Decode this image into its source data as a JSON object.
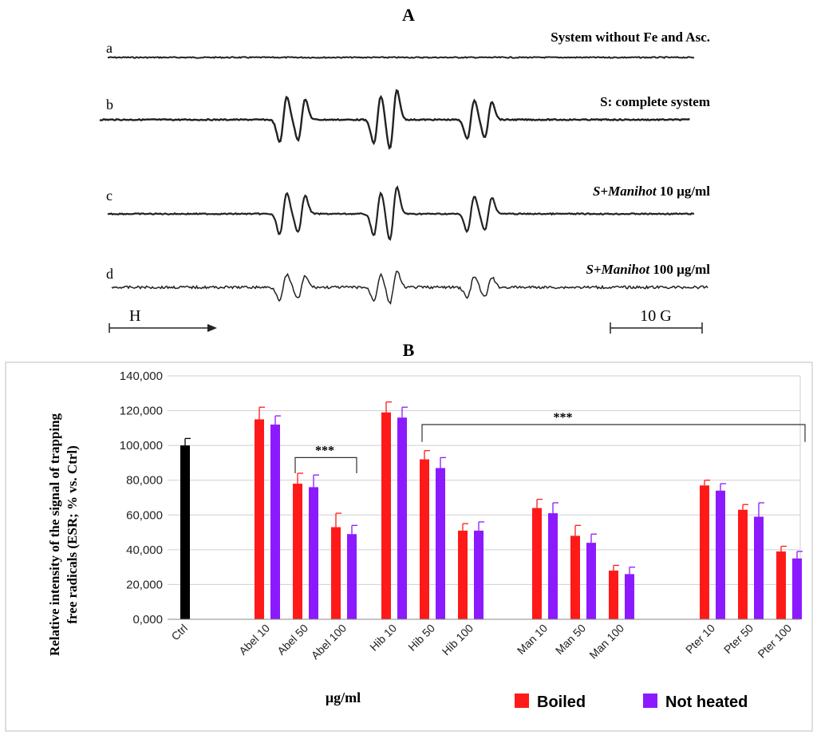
{
  "panel_a": {
    "letter": "A",
    "traces": [
      {
        "letter": "a",
        "label": "System without Fe and Asc.",
        "amplitude": 0
      },
      {
        "letter": "b",
        "label": "S: complete system",
        "amplitude": 1.0
      },
      {
        "letter": "c",
        "label_prefix": "S+",
        "label_italic": "Manihot",
        "label_suffix": " 10 µg/ml",
        "amplitude": 0.9
      },
      {
        "letter": "d",
        "label_prefix": "S+",
        "label_italic": "Manihot",
        "label_suffix": " 100 µg/ml",
        "amplitude": 0.55
      }
    ],
    "field_label": "H",
    "scale_label": "10 G"
  },
  "panel_b": {
    "letter": "B",
    "xunit": "µg/ml",
    "significance": "***"
  },
  "chart_data": {
    "type": "bar",
    "title": "",
    "ylabel_line1": "Relative intensity of the signal of trapping",
    "ylabel_line2": "free radicals (ESR; % vs. Ctrl)",
    "xlabel": "µg/ml",
    "ylim": [
      0,
      140
    ],
    "yticks": [
      "0,000",
      "20,000",
      "40,000",
      "60,000",
      "80,000",
      "100,000",
      "120,000",
      "140,000"
    ],
    "grid": true,
    "legend": "bottom-right",
    "ctrl": {
      "label": "Ctrl",
      "value": 100,
      "error": 4,
      "color": "#000000"
    },
    "categories": [
      "Abel 10",
      "Abel 50",
      "Abel 100",
      "Hib 10",
      "Hib 50",
      "Hib 100",
      "Man 10",
      "Man 50",
      "Man 100",
      "Pter 10",
      "Pter 50",
      "Pter 100"
    ],
    "series": [
      {
        "name": "Boiled",
        "color": "#ff1a1a",
        "values": [
          115,
          78,
          53,
          119,
          92,
          51,
          64,
          48,
          28,
          77,
          63,
          39
        ],
        "errors": [
          7,
          6,
          8,
          6,
          5,
          4,
          5,
          6,
          3,
          3,
          3,
          3
        ]
      },
      {
        "name": "Not heated",
        "color": "#8c1aff",
        "values": [
          112,
          76,
          49,
          116,
          87,
          51,
          61,
          44,
          26,
          74,
          59,
          35
        ],
        "errors": [
          5,
          7,
          5,
          6,
          6,
          5,
          6,
          5,
          4,
          4,
          8,
          4
        ]
      }
    ]
  }
}
